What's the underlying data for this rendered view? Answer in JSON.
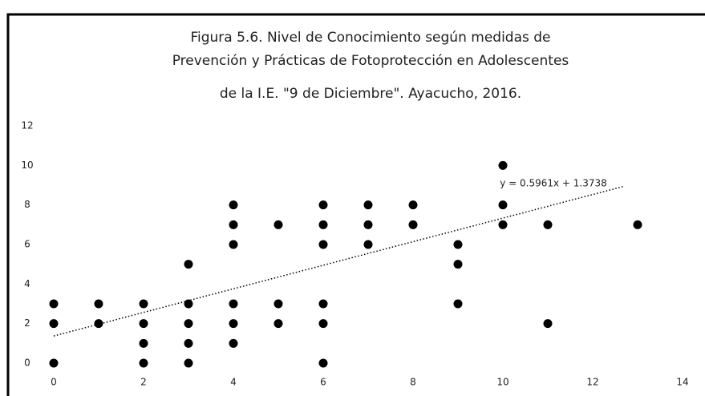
{
  "chart_data": {
    "type": "scatter",
    "title": [
      "Figura 5.6. Nivel de Conocimiento según medidas de",
      "Prevención y Prácticas de Fotoprotección en Adolescentes",
      "de la I.E. \"9 de Diciembre\". Ayacucho, 2016."
    ],
    "x": [
      0,
      0,
      0,
      1,
      1,
      2,
      2,
      2,
      2,
      3,
      3,
      3,
      3,
      3,
      4,
      4,
      4,
      4,
      4,
      4,
      5,
      5,
      5,
      6,
      6,
      6,
      6,
      6,
      6,
      7,
      7,
      7,
      8,
      8,
      9,
      9,
      9,
      10,
      10,
      10,
      11,
      11,
      13
    ],
    "values": [
      0,
      2,
      3,
      2,
      3,
      0,
      1,
      2,
      3,
      0,
      1,
      2,
      3,
      5,
      1,
      2,
      3,
      6,
      7,
      8,
      2,
      3,
      7,
      0,
      2,
      3,
      6,
      7,
      8,
      6,
      7,
      8,
      7,
      8,
      3,
      5,
      6,
      7,
      8,
      10,
      2,
      7,
      7
    ],
    "color": "#000000",
    "xlim": [
      0,
      14
    ],
    "xticks": [
      0,
      2,
      4,
      6,
      8,
      10,
      12,
      14
    ],
    "ylim": [
      0,
      12
    ],
    "yticks": [
      0,
      2,
      4,
      6,
      8,
      10,
      12
    ],
    "grid": false,
    "trendline": {
      "slope": 0.5961,
      "intercept": 1.3738,
      "label": "y = 0.5961x + 1.3738"
    }
  }
}
